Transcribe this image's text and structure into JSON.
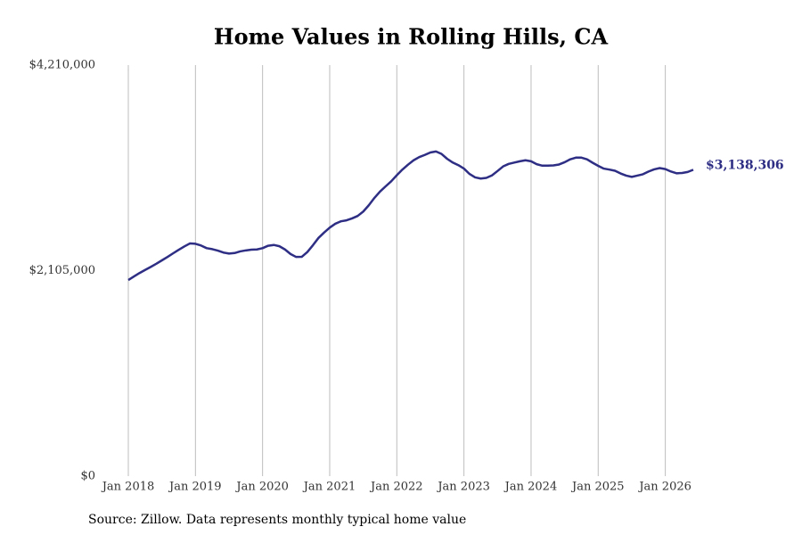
{
  "chart_data": {
    "type": "line",
    "title": "Home Values in Rolling Hills, CA",
    "source": "Source: Zillow. Data represents monthly typical home value",
    "x": [
      "2018-01",
      "2018-02",
      "2018-03",
      "2018-04",
      "2018-05",
      "2018-06",
      "2018-07",
      "2018-08",
      "2018-09",
      "2018-10",
      "2018-11",
      "2018-12",
      "2019-01",
      "2019-02",
      "2019-03",
      "2019-04",
      "2019-05",
      "2019-06",
      "2019-07",
      "2019-08",
      "2019-09",
      "2019-10",
      "2019-11",
      "2019-12",
      "2020-01",
      "2020-02",
      "2020-03",
      "2020-04",
      "2020-05",
      "2020-06",
      "2020-07",
      "2020-08",
      "2020-09",
      "2020-10",
      "2020-11",
      "2020-12",
      "2021-01",
      "2021-02",
      "2021-03",
      "2021-04",
      "2021-05",
      "2021-06",
      "2021-07",
      "2021-08",
      "2021-09",
      "2021-10",
      "2021-11",
      "2021-12",
      "2022-01",
      "2022-02",
      "2022-03",
      "2022-04",
      "2022-05",
      "2022-06",
      "2022-07",
      "2022-08",
      "2022-09",
      "2022-10",
      "2022-11",
      "2022-12",
      "2023-01",
      "2023-02",
      "2023-03",
      "2023-04",
      "2023-05",
      "2023-06",
      "2023-07",
      "2023-08",
      "2023-09",
      "2023-10",
      "2023-11",
      "2023-12",
      "2024-01",
      "2024-02",
      "2024-03",
      "2024-04",
      "2024-05",
      "2024-06",
      "2024-07",
      "2024-08",
      "2024-09",
      "2024-10",
      "2024-11",
      "2024-12",
      "2025-01",
      "2025-02",
      "2025-03",
      "2025-04",
      "2025-05",
      "2025-06",
      "2025-07",
      "2025-08",
      "2025-09",
      "2025-10",
      "2025-11",
      "2025-12",
      "2026-01",
      "2026-02",
      "2026-03",
      "2026-04",
      "2026-05",
      "2026-06"
    ],
    "series": [
      {
        "name": "Home value",
        "color": "#2e2e85",
        "values": [
          2009000,
          2045000,
          2080000,
          2112000,
          2143000,
          2175000,
          2210000,
          2245000,
          2282000,
          2318000,
          2352000,
          2383000,
          2380000,
          2362000,
          2335000,
          2325000,
          2310000,
          2290000,
          2280000,
          2285000,
          2302000,
          2312000,
          2320000,
          2322000,
          2335000,
          2360000,
          2368000,
          2355000,
          2322000,
          2275000,
          2245000,
          2246000,
          2295000,
          2365000,
          2440000,
          2495000,
          2545000,
          2585000,
          2610000,
          2620000,
          2640000,
          2665000,
          2710000,
          2775000,
          2850000,
          2915000,
          2968000,
          3020000,
          3082000,
          3140000,
          3190000,
          3235000,
          3268000,
          3290000,
          3315000,
          3325000,
          3300000,
          3250000,
          3212000,
          3185000,
          3150000,
          3095000,
          3060000,
          3048000,
          3055000,
          3080000,
          3125000,
          3172000,
          3198000,
          3212000,
          3225000,
          3235000,
          3225000,
          3195000,
          3180000,
          3180000,
          3183000,
          3192000,
          3215000,
          3245000,
          3262000,
          3262000,
          3245000,
          3210000,
          3178000,
          3150000,
          3140000,
          3128000,
          3100000,
          3078000,
          3065000,
          3078000,
          3092000,
          3120000,
          3142000,
          3155000,
          3145000,
          3120000,
          3102000,
          3105000,
          3115000,
          3138306
        ],
        "value_labels": [
          null,
          null,
          null,
          null,
          null,
          null,
          null,
          null,
          null,
          null,
          null,
          null,
          null,
          null,
          null,
          null,
          null,
          null,
          null,
          null,
          null,
          null,
          null,
          null,
          null,
          null,
          null,
          null,
          null,
          null,
          null,
          null,
          null,
          null,
          null,
          null,
          null,
          null,
          null,
          null,
          null,
          null,
          null,
          null,
          null,
          null,
          null,
          null,
          null,
          null,
          null,
          null,
          null,
          null,
          null,
          null,
          null,
          null,
          null,
          null,
          null,
          null,
          null,
          null,
          null,
          null,
          null,
          null,
          null,
          null,
          null,
          null,
          null,
          null,
          null,
          null,
          null,
          null,
          null,
          null,
          null,
          null,
          null,
          null,
          null,
          null,
          null,
          null,
          null,
          null,
          null,
          null,
          null,
          null,
          null,
          null,
          null,
          null,
          null,
          null,
          null,
          "$3,138,306"
        ]
      }
    ],
    "xlim": [
      "2018-01",
      "2026-06"
    ],
    "xticks": [
      {
        "value": "2018-01",
        "label": "Jan 2018"
      },
      {
        "value": "2019-01",
        "label": "Jan 2019"
      },
      {
        "value": "2020-01",
        "label": "Jan 2020"
      },
      {
        "value": "2021-01",
        "label": "Jan 2021"
      },
      {
        "value": "2022-01",
        "label": "Jan 2022"
      },
      {
        "value": "2023-01",
        "label": "Jan 2023"
      },
      {
        "value": "2024-01",
        "label": "Jan 2024"
      },
      {
        "value": "2025-01",
        "label": "Jan 2025"
      },
      {
        "value": "2026-01",
        "label": "Jan 2026"
      }
    ],
    "ylim": [
      0,
      4210000
    ],
    "yticks": [
      {
        "value": 0,
        "label": "$0"
      },
      {
        "value": 2105000,
        "label": "$2,105,000"
      },
      {
        "value": 4210000,
        "label": "$4,210,000"
      }
    ],
    "grid": "x"
  }
}
